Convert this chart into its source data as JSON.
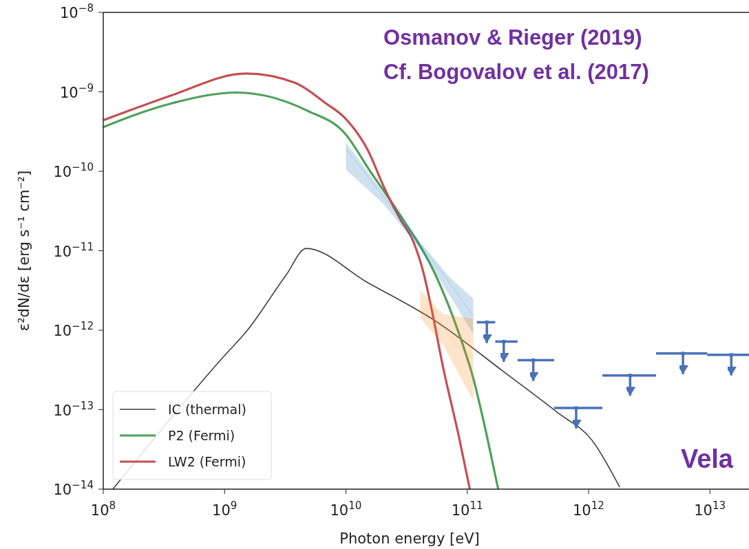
{
  "chart_data": {
    "type": "line",
    "xlabel": "Photon energy [eV]",
    "ylabel": "ε²dN/dε [erg s⁻¹ cm⁻²]",
    "log": "xy",
    "xlim": [
      100000000.0,
      21000000000000.0
    ],
    "ylim": [
      1e-14,
      1e-08
    ],
    "xticks": [
      {
        "value": 100000000.0,
        "label": "10$^{8}$"
      },
      {
        "value": 1000000000.0,
        "label": "10$^{9}$"
      },
      {
        "value": 10000000000.0,
        "label": "10$^{10}$"
      },
      {
        "value": 100000000000.0,
        "label": "10$^{11}$"
      },
      {
        "value": 1000000000000.0,
        "label": "10$^{12}$"
      },
      {
        "value": 10000000000000.0,
        "label": "10$^{13}$"
      }
    ],
    "yticks": [
      {
        "value": 1e-14,
        "label": "10$^{−14}$"
      },
      {
        "value": 1e-13,
        "label": "10$^{−13}$"
      },
      {
        "value": 1e-12,
        "label": "10$^{−12}$"
      },
      {
        "value": 1e-11,
        "label": "10$^{−11}$"
      },
      {
        "value": 1e-10,
        "label": "10$^{−10}$"
      },
      {
        "value": 1e-09,
        "label": "10$^{−9}$"
      },
      {
        "value": 1e-08,
        "label": "10$^{−8}$"
      }
    ],
    "legend": "bottom left",
    "marker": "none",
    "line_style": "solid",
    "series": [
      {
        "name": "IC (thermal)",
        "type": "line",
        "color": "#404040",
        "x": [
          120000000.0,
          1000000000.0,
          1500000000.0,
          3200000000.0,
          4700000000.0,
          15000000000.0,
          55000000000.0,
          200000000000.0,
          560000000000.0,
          1070000000000.0,
          1800000000000.0
        ],
        "values": [
          1e-14,
          4.8e-13,
          9.5e-13,
          4.9e-12,
          1.07e-11,
          4e-12,
          1.3e-12,
          3e-13,
          9.1e-14,
          4.1e-14,
          1.07e-14
        ]
      },
      {
        "name": "P2 (Fermi)",
        "type": "line",
        "color": "#4fa05a",
        "x": [
          100000000.0,
          200000000.0,
          370000000.0,
          1260000000.0,
          4800000000.0,
          9800000000.0,
          16000000000.0,
          29000000000.0,
          55000000000.0,
          85000000000.0,
          112000000000.0,
          145000000000.0,
          180000000000.0
        ],
        "values": [
          3.6e-10,
          5.4e-10,
          7.2e-10,
          9.8e-10,
          5.8e-10,
          3e-10,
          9.8e-11,
          2.6e-11,
          4.9e-12,
          9.3e-13,
          2.5e-13,
          4.7e-14,
          1e-14
        ]
      },
      {
        "name": "LW2 (Fermi)",
        "type": "line",
        "color": "#c44e52",
        "x": [
          100000000.0,
          200000000.0,
          370000000.0,
          1500000000.0,
          3800000000.0,
          6800000000.0,
          9800000000.0,
          15000000000.0,
          21000000000.0,
          28000000000.0,
          36000000000.0,
          44000000000.0,
          51000000000.0,
          63000000000.0,
          85000000000.0,
          105000000000.0
        ],
        "values": [
          4.4e-10,
          6.5e-10,
          9.1e-10,
          1.7e-09,
          1.3e-09,
          7.2e-10,
          4.7e-10,
          1.9e-10,
          5.9e-11,
          2.5e-11,
          1.3e-11,
          5e-12,
          1.8e-12,
          3.5e-13,
          4.7e-14,
          1e-14
        ]
      },
      {
        "type": "line",
        "color": "#1f77b4",
        "x": [
          10000000000.0,
          20000000000.0,
          40000000000.0,
          71000000000.0,
          112000000000.0
        ],
        "values": [
          1.9e-10,
          5e-11,
          1.26e-11,
          4e-12,
          1.5e-12
        ],
        "lower": [
          1.05e-10,
          4e-11,
          1.1e-11,
          2.8e-12,
          8.9e-13
        ],
        "upper": [
          2.3e-10,
          5.6e-11,
          1.35e-11,
          4.7e-12,
          2.5e-12
        ]
      },
      {
        "type": "line",
        "color": "#ff7f0e",
        "x": [
          41000000000.0,
          63000000000.0,
          112000000000.0
        ],
        "values": [
          2.1e-12,
          1.05e-12,
          4.2e-13
        ],
        "lower": [
          1.4e-12,
          6.6e-13,
          1.3e-13
        ],
        "upper": [
          3.2e-12,
          1.6e-12,
          1.4e-12
        ]
      },
      {
        "type": "scatter",
        "color": "#4a72b8",
        "marker": "square",
        "x": [
          145000000000.0,
          200000000000.0,
          350000000000.0,
          790000000000.0,
          2200000000000.0,
          6000000000000.0,
          15000000000000.0
        ],
        "values": [
          1.26e-12,
          7.2e-13,
          4.2e-13,
          1.05e-13,
          2.7e-13,
          5.1e-13,
          4.9e-13
        ],
        "errors": [
          [
            6.9e-13,
            1.26e-12
          ],
          [
            4e-13,
            7.2e-13
          ],
          [
            2.3e-13,
            4.2e-13
          ],
          [
            5.8e-14,
            1.05e-13
          ],
          [
            1.5e-13,
            2.7e-13
          ],
          [
            2.8e-13,
            5.1e-13
          ],
          [
            2.7e-13,
            4.9e-13
          ]
        ],
        "xerrors": [
          [
            120000000000.0,
            170000000000.0
          ],
          [
            170000000000.0,
            260000000000.0
          ],
          [
            260000000000.0,
            520000000000.0
          ],
          [
            520000000000.0,
            1300000000000.0
          ],
          [
            1300000000000.0,
            3600000000000.0
          ],
          [
            3600000000000.0,
            9500000000000.0
          ],
          [
            9500000000000.0,
            21000000000000.0
          ]
        ]
      }
    ],
    "annotations": [
      "Osmanov & Rieger (2019)",
      "Cf. Bogovalov et al. (2017)",
      "Vela"
    ]
  }
}
